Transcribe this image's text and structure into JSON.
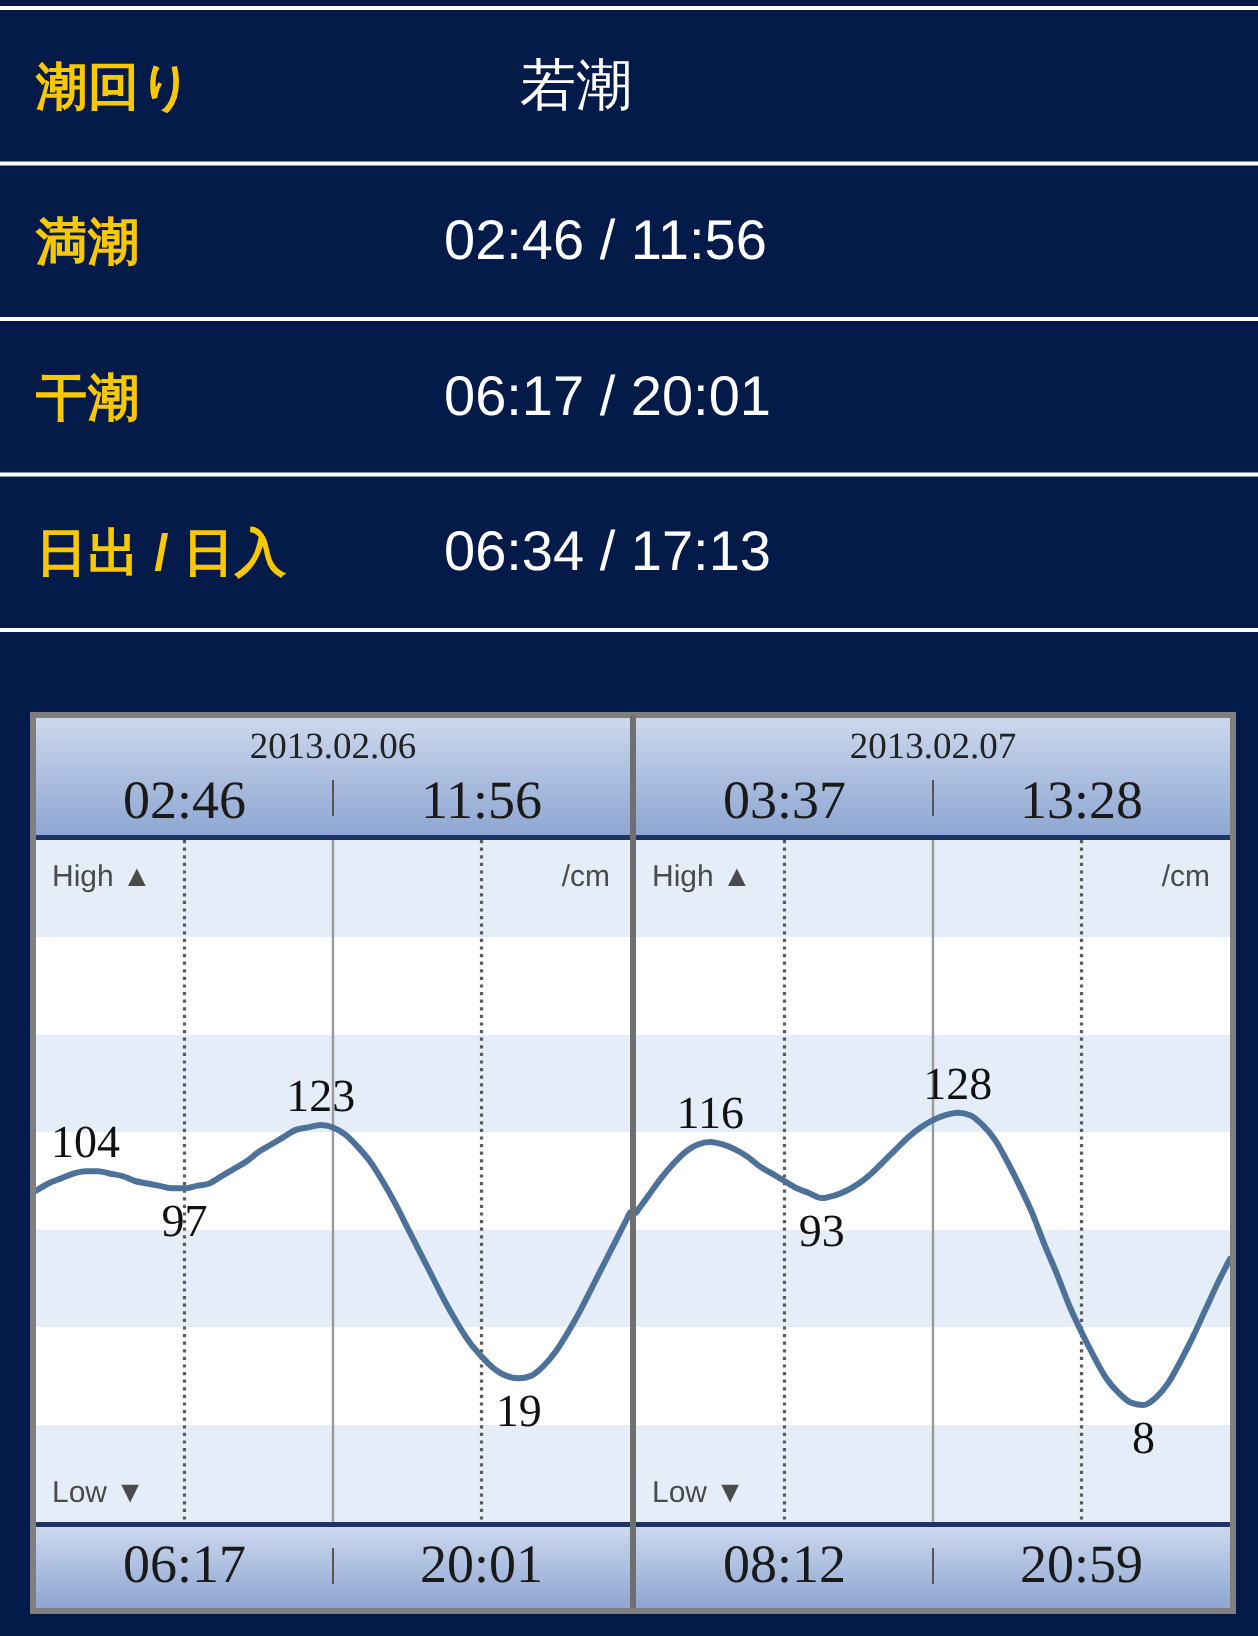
{
  "chart_data": [
    {
      "type": "other",
      "annotations": [
        "潮回り",
        "若潮",
        "満潮",
        "02:46 / 11:56",
        "干潮",
        "06:17 / 20:01",
        "日出 / 日入",
        "06:34 / 17:13"
      ]
    },
    {
      "type": "line",
      "title": "2013.02.06",
      "categories": [
        null,
        null,
        null,
        null,
        null,
        null,
        null,
        null,
        null,
        null,
        null,
        null,
        null,
        null,
        null,
        null,
        null,
        null,
        null,
        null,
        null,
        null,
        null,
        null,
        null,
        null,
        null,
        null,
        null,
        null,
        null,
        null,
        null,
        null,
        null,
        null,
        null,
        null,
        null,
        null,
        null,
        null,
        null,
        null,
        null,
        null,
        null,
        null,
        null
      ],
      "values": [
        96,
        99,
        101,
        103,
        104,
        104,
        103,
        102,
        100,
        99,
        98,
        97,
        97,
        98,
        99,
        102,
        105,
        108,
        112,
        115,
        118,
        121,
        122,
        123,
        122,
        119,
        114,
        108,
        100,
        91,
        81,
        71,
        61,
        51,
        42,
        34,
        28,
        23,
        20,
        19,
        20,
        24,
        30,
        38,
        47,
        57,
        67,
        77,
        87
      ],
      "value_labels": [
        null,
        null,
        null,
        null,
        "104",
        null,
        null,
        null,
        null,
        null,
        null,
        null,
        "97",
        null,
        null,
        null,
        null,
        null,
        null,
        null,
        null,
        null,
        null,
        "123",
        null,
        null,
        null,
        null,
        null,
        null,
        null,
        null,
        null,
        null,
        null,
        null,
        null,
        null,
        null,
        "19",
        null,
        null,
        null,
        null,
        null,
        null,
        null,
        null,
        null
      ],
      "color": "#4d7198",
      "ylim": [
        -40,
        240
      ],
      "annotations": [
        "02:46",
        "11:56",
        "06:17",
        "20:01",
        "High ▲",
        "Low ▼",
        "/cm"
      ]
    },
    {
      "type": "line",
      "title": "2013.02.07",
      "categories": [
        null,
        null,
        null,
        null,
        null,
        null,
        null,
        null,
        null,
        null,
        null,
        null,
        null,
        null,
        null,
        null,
        null,
        null,
        null,
        null,
        null,
        null,
        null,
        null,
        null,
        null,
        null,
        null,
        null,
        null,
        null,
        null,
        null,
        null,
        null,
        null,
        null,
        null,
        null,
        null,
        null,
        null,
        null,
        null,
        null,
        null,
        null,
        null,
        null
      ],
      "values": [
        87,
        94,
        101,
        107,
        112,
        115,
        116,
        115,
        113,
        110,
        106,
        103,
        100,
        97,
        95,
        93,
        94,
        96,
        99,
        103,
        108,
        113,
        118,
        122,
        125,
        127,
        128,
        127,
        123,
        117,
        108,
        98,
        87,
        74,
        62,
        49,
        38,
        28,
        19,
        13,
        9,
        8,
        11,
        17,
        26,
        36,
        47,
        58,
        68
      ],
      "value_labels": [
        null,
        null,
        null,
        null,
        null,
        null,
        "116",
        null,
        null,
        null,
        null,
        null,
        null,
        null,
        null,
        "93",
        null,
        null,
        null,
        null,
        null,
        null,
        null,
        null,
        null,
        null,
        "128",
        null,
        null,
        null,
        null,
        null,
        null,
        null,
        null,
        null,
        null,
        null,
        null,
        null,
        null,
        "8",
        null,
        null,
        null,
        null,
        null,
        null,
        null
      ],
      "color": "#4d7198",
      "ylim": [
        -40,
        240
      ],
      "annotations": [
        "03:37",
        "13:28",
        "08:12",
        "20:59",
        "High ▲",
        "Low ▼",
        "/cm"
      ]
    }
  ]
}
